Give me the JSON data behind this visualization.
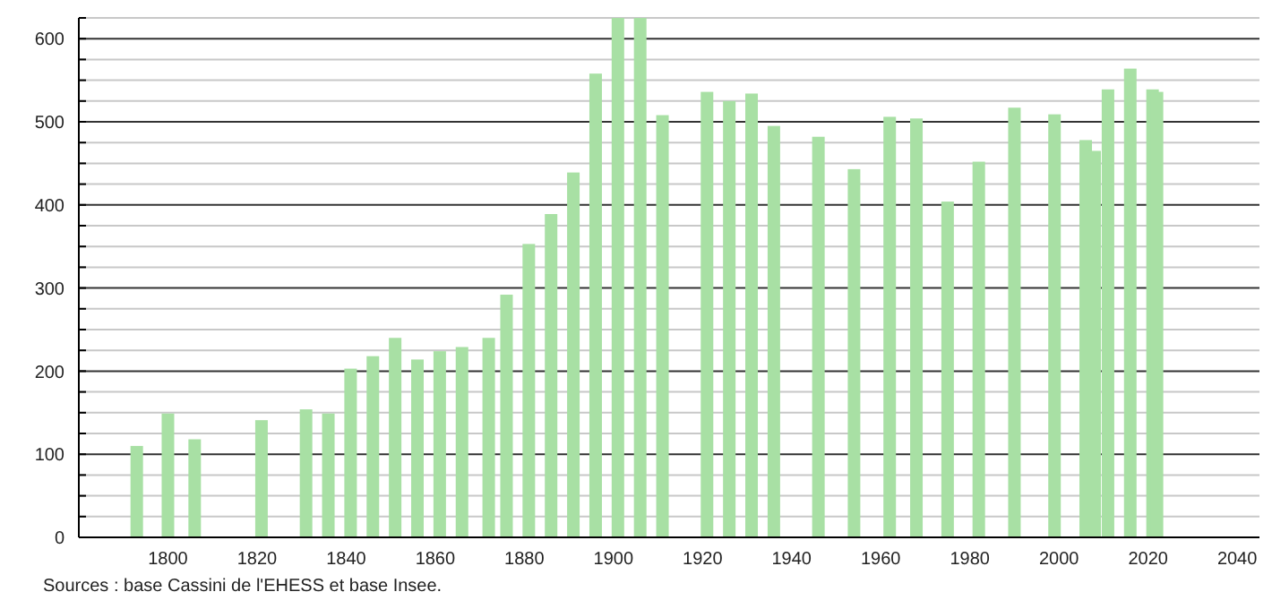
{
  "chart_data": {
    "type": "bar",
    "color": "#a8e0a4",
    "x": [
      1793,
      1800,
      1806,
      1821,
      1831,
      1836,
      1841,
      1846,
      1851,
      1856,
      1861,
      1866,
      1872,
      1876,
      1881,
      1886,
      1891,
      1896,
      1901,
      1906,
      1911,
      1921,
      1926,
      1931,
      1936,
      1946,
      1954,
      1962,
      1968,
      1975,
      1982,
      1990,
      1999,
      2006,
      2008,
      2011,
      2016,
      2021,
      2022
    ],
    "values": [
      110,
      149,
      118,
      141,
      154,
      149,
      203,
      218,
      240,
      214,
      224,
      229,
      240,
      292,
      353,
      389,
      439,
      558,
      625,
      625,
      508,
      536,
      525,
      534,
      495,
      482,
      443,
      506,
      504,
      404,
      452,
      517,
      509,
      478,
      465,
      539,
      564,
      539,
      536
    ],
    "xlim": [
      1780,
      2045
    ],
    "xticks": [
      1800,
      1820,
      1840,
      1860,
      1880,
      1900,
      1920,
      1940,
      1960,
      1980,
      2000,
      2020,
      2040
    ],
    "ylim": [
      0,
      625
    ],
    "yticks": [
      0,
      {
        "value": 25,
        "label": null
      },
      {
        "value": 50,
        "label": null
      },
      {
        "value": 75,
        "label": null
      },
      100,
      {
        "value": 125,
        "label": null
      },
      {
        "value": 150,
        "label": null
      },
      {
        "value": 175,
        "label": null
      },
      200,
      {
        "value": 225,
        "label": null
      },
      {
        "value": 250,
        "label": null
      },
      {
        "value": 275,
        "label": null
      },
      300,
      {
        "value": 325,
        "label": null
      },
      {
        "value": 350,
        "label": null
      },
      {
        "value": 375,
        "label": null
      },
      400,
      {
        "value": 425,
        "label": null
      },
      {
        "value": 450,
        "label": null
      },
      {
        "value": 475,
        "label": null
      },
      500,
      {
        "value": 525,
        "label": null
      },
      {
        "value": 550,
        "label": null
      },
      {
        "value": 575,
        "label": null
      },
      600,
      {
        "value": 625,
        "label": null
      }
    ],
    "grid": "y",
    "annotations": [
      "Sources : base Cassini de l'EHESS et base Insee."
    ]
  }
}
